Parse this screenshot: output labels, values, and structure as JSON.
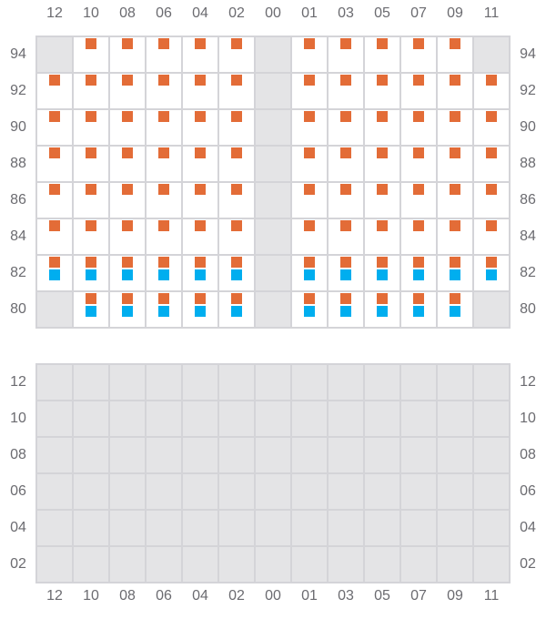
{
  "columns": [
    "12",
    "10",
    "08",
    "06",
    "04",
    "02",
    "00",
    "01",
    "03",
    "05",
    "07",
    "09",
    "11"
  ],
  "colors": {
    "orange": "#E36C37",
    "blue": "#00AEEF",
    "gray": "#E4E4E6",
    "line": "#D4D4D8"
  },
  "top_section": {
    "rows": [
      {
        "label": "94",
        "cells": [
          "gray",
          "o",
          "o",
          "o",
          "o",
          "o",
          "gray",
          "o",
          "o",
          "o",
          "o",
          "o",
          "gray"
        ]
      },
      {
        "label": "92",
        "cells": [
          "o",
          "o",
          "o",
          "o",
          "o",
          "o",
          "gray",
          "o",
          "o",
          "o",
          "o",
          "o",
          "o"
        ]
      },
      {
        "label": "90",
        "cells": [
          "o",
          "o",
          "o",
          "o",
          "o",
          "o",
          "gray",
          "o",
          "o",
          "o",
          "o",
          "o",
          "o"
        ]
      },
      {
        "label": "88",
        "cells": [
          "o",
          "o",
          "o",
          "o",
          "o",
          "o",
          "gray",
          "o",
          "o",
          "o",
          "o",
          "o",
          "o"
        ]
      },
      {
        "label": "86",
        "cells": [
          "o",
          "o",
          "o",
          "o",
          "o",
          "o",
          "gray",
          "o",
          "o",
          "o",
          "o",
          "o",
          "o"
        ]
      },
      {
        "label": "84",
        "cells": [
          "o",
          "o",
          "o",
          "o",
          "o",
          "o",
          "gray",
          "o",
          "o",
          "o",
          "o",
          "o",
          "o"
        ]
      },
      {
        "label": "82",
        "cells": [
          "ob",
          "ob",
          "ob",
          "ob",
          "ob",
          "ob",
          "gray",
          "ob",
          "ob",
          "ob",
          "ob",
          "ob",
          "ob"
        ]
      },
      {
        "label": "80",
        "cells": [
          "gray",
          "ob",
          "ob",
          "ob",
          "ob",
          "ob",
          "gray",
          "ob",
          "ob",
          "ob",
          "ob",
          "ob",
          "gray"
        ]
      }
    ]
  },
  "bottom_section": {
    "rows": [
      {
        "label": "12",
        "cells": [
          "gray",
          "gray",
          "gray",
          "gray",
          "gray",
          "gray",
          "gray",
          "gray",
          "gray",
          "gray",
          "gray",
          "gray",
          "gray"
        ]
      },
      {
        "label": "10",
        "cells": [
          "gray",
          "gray",
          "gray",
          "gray",
          "gray",
          "gray",
          "gray",
          "gray",
          "gray",
          "gray",
          "gray",
          "gray",
          "gray"
        ]
      },
      {
        "label": "08",
        "cells": [
          "gray",
          "gray",
          "gray",
          "gray",
          "gray",
          "gray",
          "gray",
          "gray",
          "gray",
          "gray",
          "gray",
          "gray",
          "gray"
        ]
      },
      {
        "label": "06",
        "cells": [
          "gray",
          "gray",
          "gray",
          "gray",
          "gray",
          "gray",
          "gray",
          "gray",
          "gray",
          "gray",
          "gray",
          "gray",
          "gray"
        ]
      },
      {
        "label": "04",
        "cells": [
          "gray",
          "gray",
          "gray",
          "gray",
          "gray",
          "gray",
          "gray",
          "gray",
          "gray",
          "gray",
          "gray",
          "gray",
          "gray"
        ]
      },
      {
        "label": "02",
        "cells": [
          "gray",
          "gray",
          "gray",
          "gray",
          "gray",
          "gray",
          "gray",
          "gray",
          "gray",
          "gray",
          "gray",
          "gray",
          "gray"
        ]
      }
    ]
  }
}
